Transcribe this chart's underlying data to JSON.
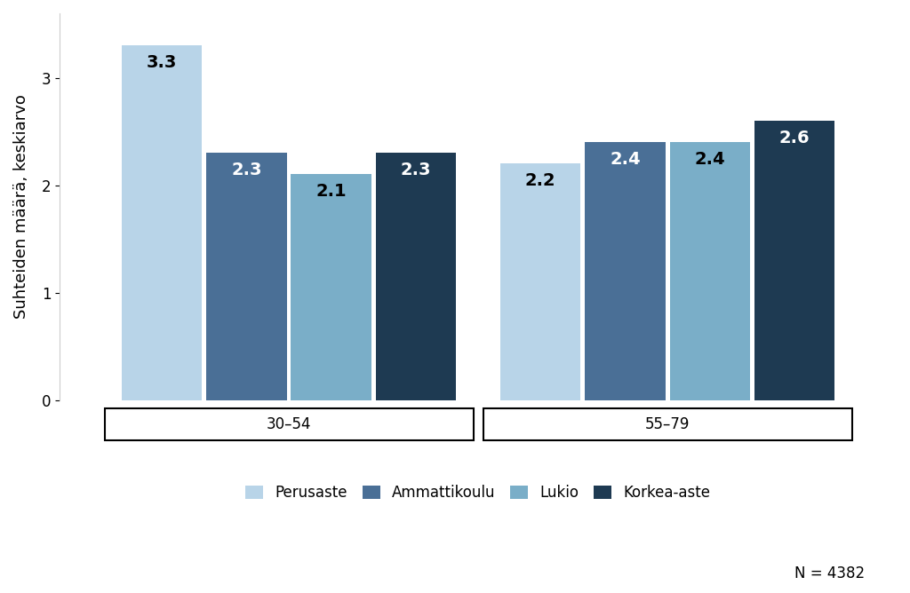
{
  "groups": [
    "30–54",
    "55–79"
  ],
  "categories": [
    "Perusaste",
    "Ammattikoulu",
    "Lukio",
    "Korkea-aste"
  ],
  "values": {
    "30–54": [
      3.3,
      2.3,
      2.1,
      2.3
    ],
    "55–79": [
      2.2,
      2.4,
      2.4,
      2.6
    ]
  },
  "colors": {
    "Perusaste": "#b8d4e8",
    "Ammattikoulu": "#4a6f96",
    "Lukio": "#7aaec8",
    "Korkea-aste": "#1e3a52"
  },
  "label_colors": {
    "Perusaste": "#000000",
    "Ammattikoulu": "#ffffff",
    "Lukio": "#000000",
    "Korkea-aste": "#ffffff"
  },
  "ylabel": "Suhteiden määrä, keskiarvo",
  "ylim": [
    0,
    3.6
  ],
  "yticks": [
    0,
    1,
    2,
    3
  ],
  "note": "N = 4382",
  "background_color": "#ffffff",
  "bar_width": 0.17,
  "label_fontsize": 14,
  "ylabel_fontsize": 13,
  "tick_fontsize": 12,
  "legend_fontsize": 12,
  "note_fontsize": 12,
  "group_centers": [
    0.37,
    1.13
  ]
}
